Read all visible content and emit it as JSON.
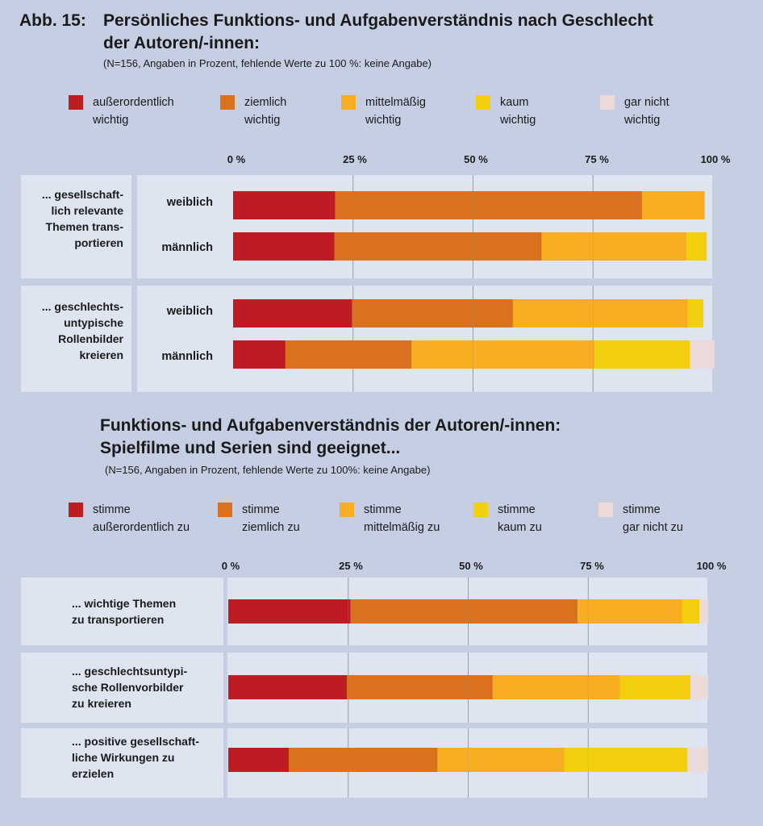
{
  "figure1": {
    "abb": "Abb. 15:",
    "title_line1": "Persönliches Funktions- und Aufgabenverständnis nach Geschlecht",
    "title_line2": "der Autoren/-innen:",
    "note": "(N=156, Angaben in Prozent, fehlende Werte zu 100 %: keine Angabe)",
    "legend": [
      {
        "line1": "außerordentlich",
        "line2": "wichtig",
        "color": "#be1c23"
      },
      {
        "line1": "ziemlich",
        "line2": "wichtig",
        "color": "#d9711e"
      },
      {
        "line1": "mittelmäßig",
        "line2": "wichtig",
        "color": "#f8ad22"
      },
      {
        "line1": "kaum",
        "line2": "wichtig",
        "color": "#f1cf0c"
      },
      {
        "line1": "gar nicht",
        "line2": "wichtig",
        "color": "#ecdadb"
      }
    ],
    "ticks": [
      "0 %",
      "25 %",
      "50 %",
      "75 %",
      "100 %"
    ],
    "groups": [
      {
        "label": [
          "... gesellschaft-",
          "lich relevante",
          "Themen trans-",
          "portieren"
        ],
        "rows": [
          "weiblich",
          "männlich"
        ]
      },
      {
        "label": [
          "... geschlechts-",
          "untypische",
          "Rollenbilder",
          "kreieren"
        ],
        "rows": [
          "weiblich",
          "männlich"
        ]
      }
    ]
  },
  "figure2": {
    "title_line1": "Funktions- und Aufgabenverständnis der Autoren/-innen:",
    "title_line2": "Spielfilme und Serien sind geeignet...",
    "note": "(N=156, Angaben in Prozent, fehlende Werte zu 100%: keine Angabe)",
    "legend": [
      {
        "line1": "stimme",
        "line2": "außerordentlich zu",
        "color": "#be1c23"
      },
      {
        "line1": "stimme",
        "line2": "ziemlich zu",
        "color": "#d9711e"
      },
      {
        "line1": "stimme",
        "line2": "mittelmäßig zu",
        "color": "#f8ad22"
      },
      {
        "line1": "stimme",
        "line2": "kaum zu",
        "color": "#f1cf0c"
      },
      {
        "line1": "stimme",
        "line2": "gar nicht zu",
        "color": "#ecdadb"
      }
    ],
    "ticks": [
      "0 %",
      "25 %",
      "50 %",
      "75 %",
      "100 %"
    ],
    "rows": [
      {
        "label": [
          "... wichtige Themen",
          "zu transportieren"
        ]
      },
      {
        "label": [
          "... geschlechtsuntypi-",
          "sche Rollenvorbilder",
          "zu kreieren"
        ]
      },
      {
        "label": [
          "... positive gesellschaft-",
          "liche Wirkungen zu",
          "erzielen"
        ]
      }
    ]
  },
  "chart_data": [
    {
      "type": "bar",
      "orientation": "horizontal",
      "stacked": true,
      "title": "Persönliches Funktions- und Aufgabenverständnis nach Geschlecht der Autoren/-innen:",
      "xlim": [
        0,
        100
      ],
      "categories": [
        "... gesellschaftlich relevante Themen transportieren – weiblich",
        "... gesellschaftlich relevante Themen transportieren – männlich",
        "... geschlechtsuntypische Rollenbilder kreieren – weiblich",
        "... geschlechtsuntypische Rollenbilder kreieren – männlich"
      ],
      "series": [
        {
          "name": "außerordentlich wichtig",
          "values": [
            21.3,
            21.1,
            24.8,
            10.9
          ]
        },
        {
          "name": "ziemlich wichtig",
          "values": [
            63.9,
            43.2,
            33.5,
            26.3
          ]
        },
        {
          "name": "mittelmäßig wichtig",
          "values": [
            13.1,
            30.2,
            36.4,
            38.1
          ]
        },
        {
          "name": "kaum wichtig",
          "values": [
            0,
            4.2,
            3.3,
            19.9
          ]
        },
        {
          "name": "gar nicht wichtig",
          "values": [
            0,
            0,
            0,
            5.1
          ]
        }
      ]
    },
    {
      "type": "bar",
      "orientation": "horizontal",
      "stacked": true,
      "title": "Funktions- und Aufgabenverständnis der Autoren/-innen: Spielfilme und Serien sind geeignet...",
      "xlim": [
        0,
        100
      ],
      "categories": [
        "... wichtige Themen zu transportieren",
        "... geschlechtsuntypische Rollenvorbilder zu kreieren",
        "... positive gesellschaftliche Wirkungen zu erzielen"
      ],
      "series": [
        {
          "name": "stimme außerordentlich zu",
          "values": [
            25.5,
            24.7,
            12.6
          ]
        },
        {
          "name": "stimme ziemlich zu",
          "values": [
            47.3,
            30.4,
            31.0
          ]
        },
        {
          "name": "stimme mittelmäßig zu",
          "values": [
            21.8,
            26.5,
            26.4
          ]
        },
        {
          "name": "stimme kaum zu",
          "values": [
            3.6,
            14.7,
            25.7
          ]
        },
        {
          "name": "stimme gar nicht zu",
          "values": [
            1.8,
            3.7,
            4.3
          ]
        }
      ]
    }
  ]
}
